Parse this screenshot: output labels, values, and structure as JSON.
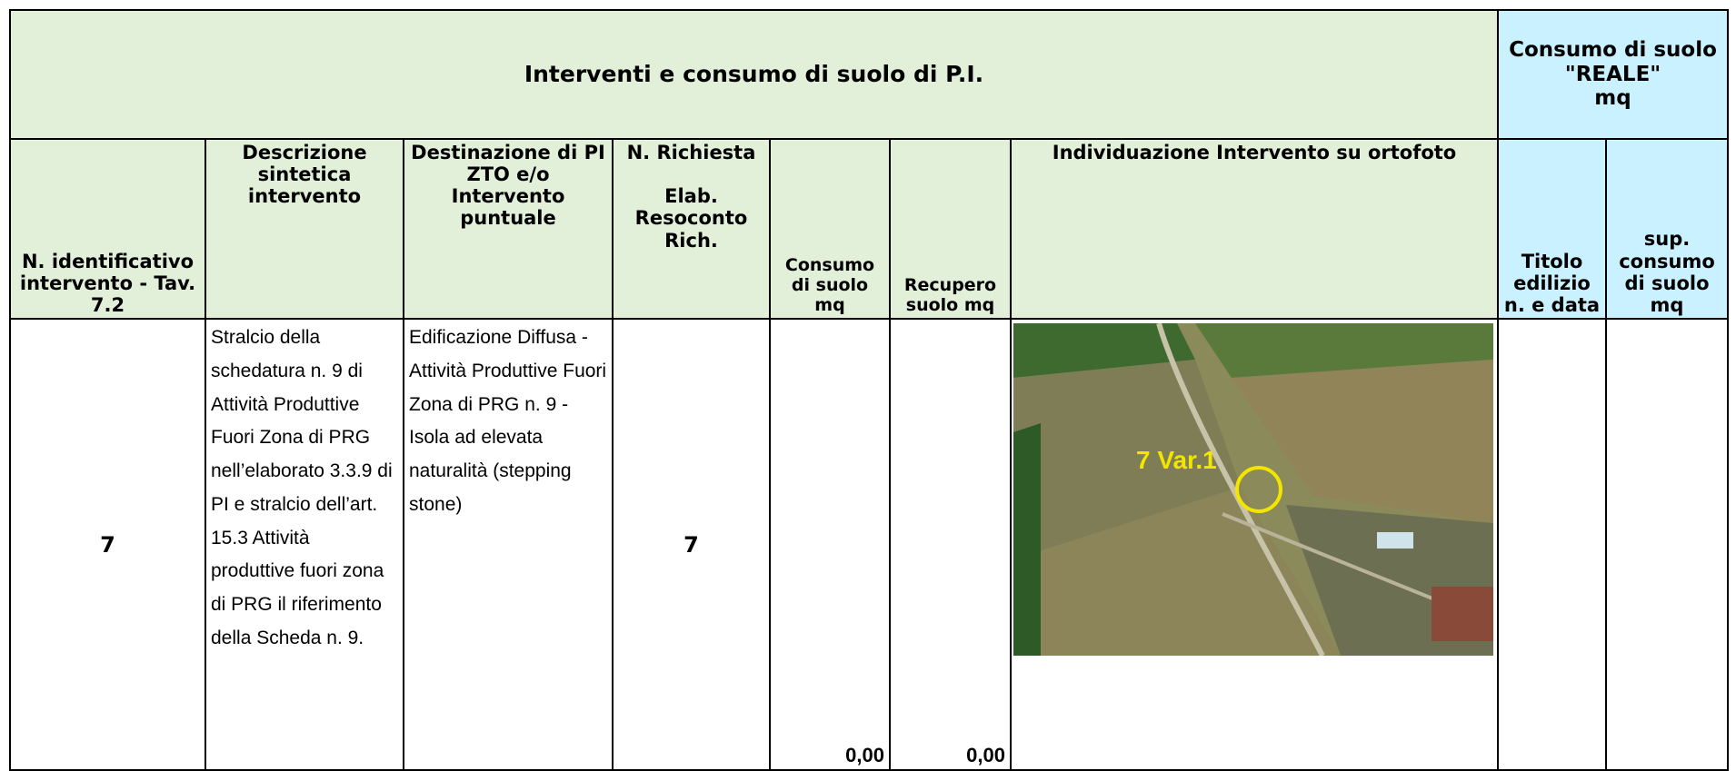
{
  "header": {
    "title": "Interventi e consumo di suolo di P.I.",
    "side_title": "Consumo di suolo \"REALE\"\nmq"
  },
  "columns": [
    "N. identificativo intervento - Tav. 7.2",
    "Descrizione sintetica intervento",
    "Destinazione di PI\nZTO e/o Intervento puntuale",
    "N. Richiesta\n\nElab. Resoconto Rich.",
    "Consumo di suolo mq",
    "Recupero suolo mq",
    "Individuazione Intervento su ortofoto",
    "Titolo edilizio\nn. e data",
    "sup. consumo di suolo mq"
  ],
  "row": {
    "id": "7",
    "description": "Stralcio della schedatura n. 9 di Attività Produttive Fuori Zona di PRG nell’elaborato 3.3.9 di PI e stralcio dell’art. 15.3 Attività produttive fuori zona di PRG il riferimento della Scheda n. 9.",
    "destination": "Edificazione Diffusa - Attività Produttive Fuori Zona di PRG n. 9 - Isola ad elevata naturalità (stepping stone)",
    "request": "7",
    "consumption": "0,00",
    "recovery": "0,00",
    "image_label": "7 Var.1"
  }
}
